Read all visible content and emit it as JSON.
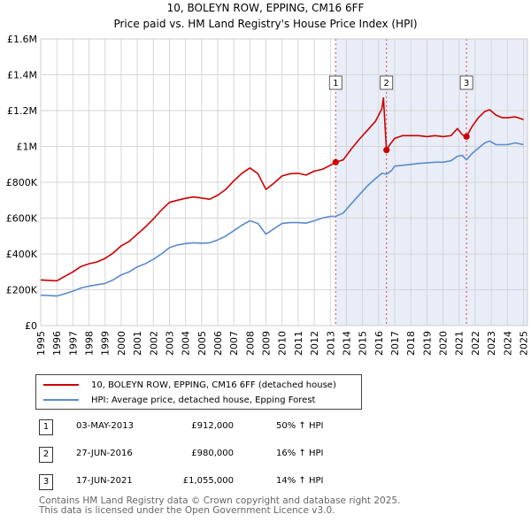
{
  "title_line1": "10, BOLEYN ROW, EPPING, CM16 6FF",
  "title_line2": "Price paid vs. HM Land Registry's House Price Index (HPI)",
  "chart_data": {
    "type": "line",
    "title": "Price paid vs. HM Land Registry's House Price Index (HPI)",
    "xlabel": "",
    "ylabel": "",
    "xlim": [
      1995,
      2025.25
    ],
    "ylim": [
      0,
      1600000
    ],
    "x_ticks": [
      "1995",
      "1996",
      "1997",
      "1998",
      "1999",
      "2000",
      "2001",
      "2002",
      "2003",
      "2004",
      "2005",
      "2006",
      "2007",
      "2008",
      "2009",
      "2010",
      "2011",
      "2012",
      "2013",
      "2014",
      "2015",
      "2016",
      "2017",
      "2018",
      "2019",
      "2020",
      "2021",
      "2022",
      "2023",
      "2024",
      "2025"
    ],
    "y_ticks": [
      {
        "value": 0,
        "label": "£0"
      },
      {
        "value": 200000,
        "label": "£200K"
      },
      {
        "value": 400000,
        "label": "£400K"
      },
      {
        "value": 600000,
        "label": "£600K"
      },
      {
        "value": 800000,
        "label": "£800K"
      },
      {
        "value": 1000000,
        "label": "£1M"
      },
      {
        "value": 1200000,
        "label": "£1.2M"
      },
      {
        "value": 1400000,
        "label": "£1.4M"
      },
      {
        "value": 1600000,
        "label": "£1.6M"
      }
    ],
    "grid": true,
    "shaded_region": {
      "from": 2013.33,
      "to": 2025.25
    },
    "series": [
      {
        "name": "10, BOLEYN ROW, EPPING, CM16 6FF (detached house)",
        "color": "#cc0000",
        "x": [
          1995.0,
          1996.0,
          1996.5,
          1997.0,
          1997.5,
          1998.0,
          1998.5,
          1999.0,
          1999.5,
          2000.0,
          2000.5,
          2001.0,
          2001.5,
          2002.0,
          2002.5,
          2003.0,
          2003.5,
          2004.0,
          2004.5,
          2005.0,
          2005.5,
          2006.0,
          2006.5,
          2007.0,
          2007.5,
          2008.0,
          2008.5,
          2009.0,
          2009.5,
          2010.0,
          2010.5,
          2011.0,
          2011.5,
          2012.0,
          2012.5,
          2013.0,
          2013.33,
          2013.8,
          2014.3,
          2014.8,
          2015.3,
          2015.8,
          2016.2,
          2016.3,
          2016.49,
          2016.7,
          2017.0,
          2017.5,
          2018.0,
          2018.5,
          2019.0,
          2019.5,
          2020.0,
          2020.5,
          2020.9,
          2021.2,
          2021.46,
          2021.8,
          2022.2,
          2022.6,
          2022.9,
          2023.3,
          2023.7,
          2024.0,
          2024.5,
          2025.0
        ],
        "y": [
          255000,
          250000,
          275000,
          300000,
          330000,
          345000,
          355000,
          375000,
          405000,
          445000,
          470000,
          510000,
          550000,
          595000,
          645000,
          688000,
          700000,
          710000,
          718000,
          712000,
          705000,
          728000,
          760000,
          808000,
          850000,
          880000,
          848000,
          760000,
          795000,
          835000,
          848000,
          850000,
          840000,
          862000,
          872000,
          895000,
          912000,
          925000,
          985000,
          1040000,
          1090000,
          1140000,
          1210000,
          1270000,
          980000,
          1010000,
          1045000,
          1060000,
          1060000,
          1060000,
          1055000,
          1060000,
          1055000,
          1060000,
          1100000,
          1065000,
          1055000,
          1110000,
          1160000,
          1195000,
          1205000,
          1175000,
          1160000,
          1160000,
          1165000,
          1150000
        ]
      },
      {
        "name": "HPI: Average price, detached house, Epping Forest",
        "color": "#5a8bcc",
        "x": [
          1995.0,
          1996.0,
          1996.5,
          1997.0,
          1997.5,
          1998.0,
          1998.5,
          1999.0,
          1999.5,
          2000.0,
          2000.5,
          2001.0,
          2001.5,
          2002.0,
          2002.5,
          2003.0,
          2003.5,
          2004.0,
          2004.5,
          2005.0,
          2005.5,
          2006.0,
          2006.5,
          2007.0,
          2007.5,
          2008.0,
          2008.5,
          2009.0,
          2009.5,
          2010.0,
          2010.5,
          2011.0,
          2011.5,
          2012.0,
          2012.5,
          2013.0,
          2013.33,
          2013.8,
          2014.3,
          2014.8,
          2015.3,
          2015.8,
          2016.2,
          2016.49,
          2016.8,
          2017.0,
          2017.5,
          2018.0,
          2018.5,
          2019.0,
          2019.5,
          2020.0,
          2020.5,
          2020.9,
          2021.2,
          2021.46,
          2021.8,
          2022.2,
          2022.6,
          2022.9,
          2023.3,
          2023.7,
          2024.0,
          2024.5,
          2025.0
        ],
        "y": [
          170000,
          165000,
          178000,
          192000,
          210000,
          220000,
          228000,
          235000,
          255000,
          283000,
          300000,
          328000,
          345000,
          370000,
          400000,
          435000,
          450000,
          458000,
          462000,
          460000,
          462000,
          478000,
          500000,
          530000,
          560000,
          585000,
          570000,
          510000,
          540000,
          570000,
          575000,
          575000,
          572000,
          585000,
          600000,
          610000,
          610000,
          628000,
          680000,
          730000,
          780000,
          820000,
          850000,
          845000,
          865000,
          890000,
          895000,
          900000,
          905000,
          908000,
          912000,
          912000,
          920000,
          945000,
          950000,
          925000,
          960000,
          990000,
          1020000,
          1030000,
          1010000,
          1010000,
          1010000,
          1020000,
          1010000
        ]
      }
    ],
    "sales": [
      {
        "num": "1",
        "x": 2013.33,
        "y": 912000,
        "date": "03-MAY-2013",
        "price": "£912,000",
        "hpi": "50% ↑ HPI"
      },
      {
        "num": "2",
        "x": 2016.49,
        "y": 980000,
        "date": "27-JUN-2016",
        "price": "£980,000",
        "hpi": "16% ↑ HPI"
      },
      {
        "num": "3",
        "x": 2021.46,
        "y": 1055000,
        "date": "17-JUN-2021",
        "price": "£1,055,000",
        "hpi": "14% ↑ HPI"
      }
    ]
  },
  "legend": {
    "property_label": "10, BOLEYN ROW, EPPING, CM16 6FF (detached house)",
    "hpi_label": "HPI: Average price, detached house, Epping Forest"
  },
  "footer": {
    "line1": "Contains HM Land Registry data © Crown copyright and database right 2025.",
    "line2": "This data is licensed under the Open Government Licence v3.0."
  }
}
